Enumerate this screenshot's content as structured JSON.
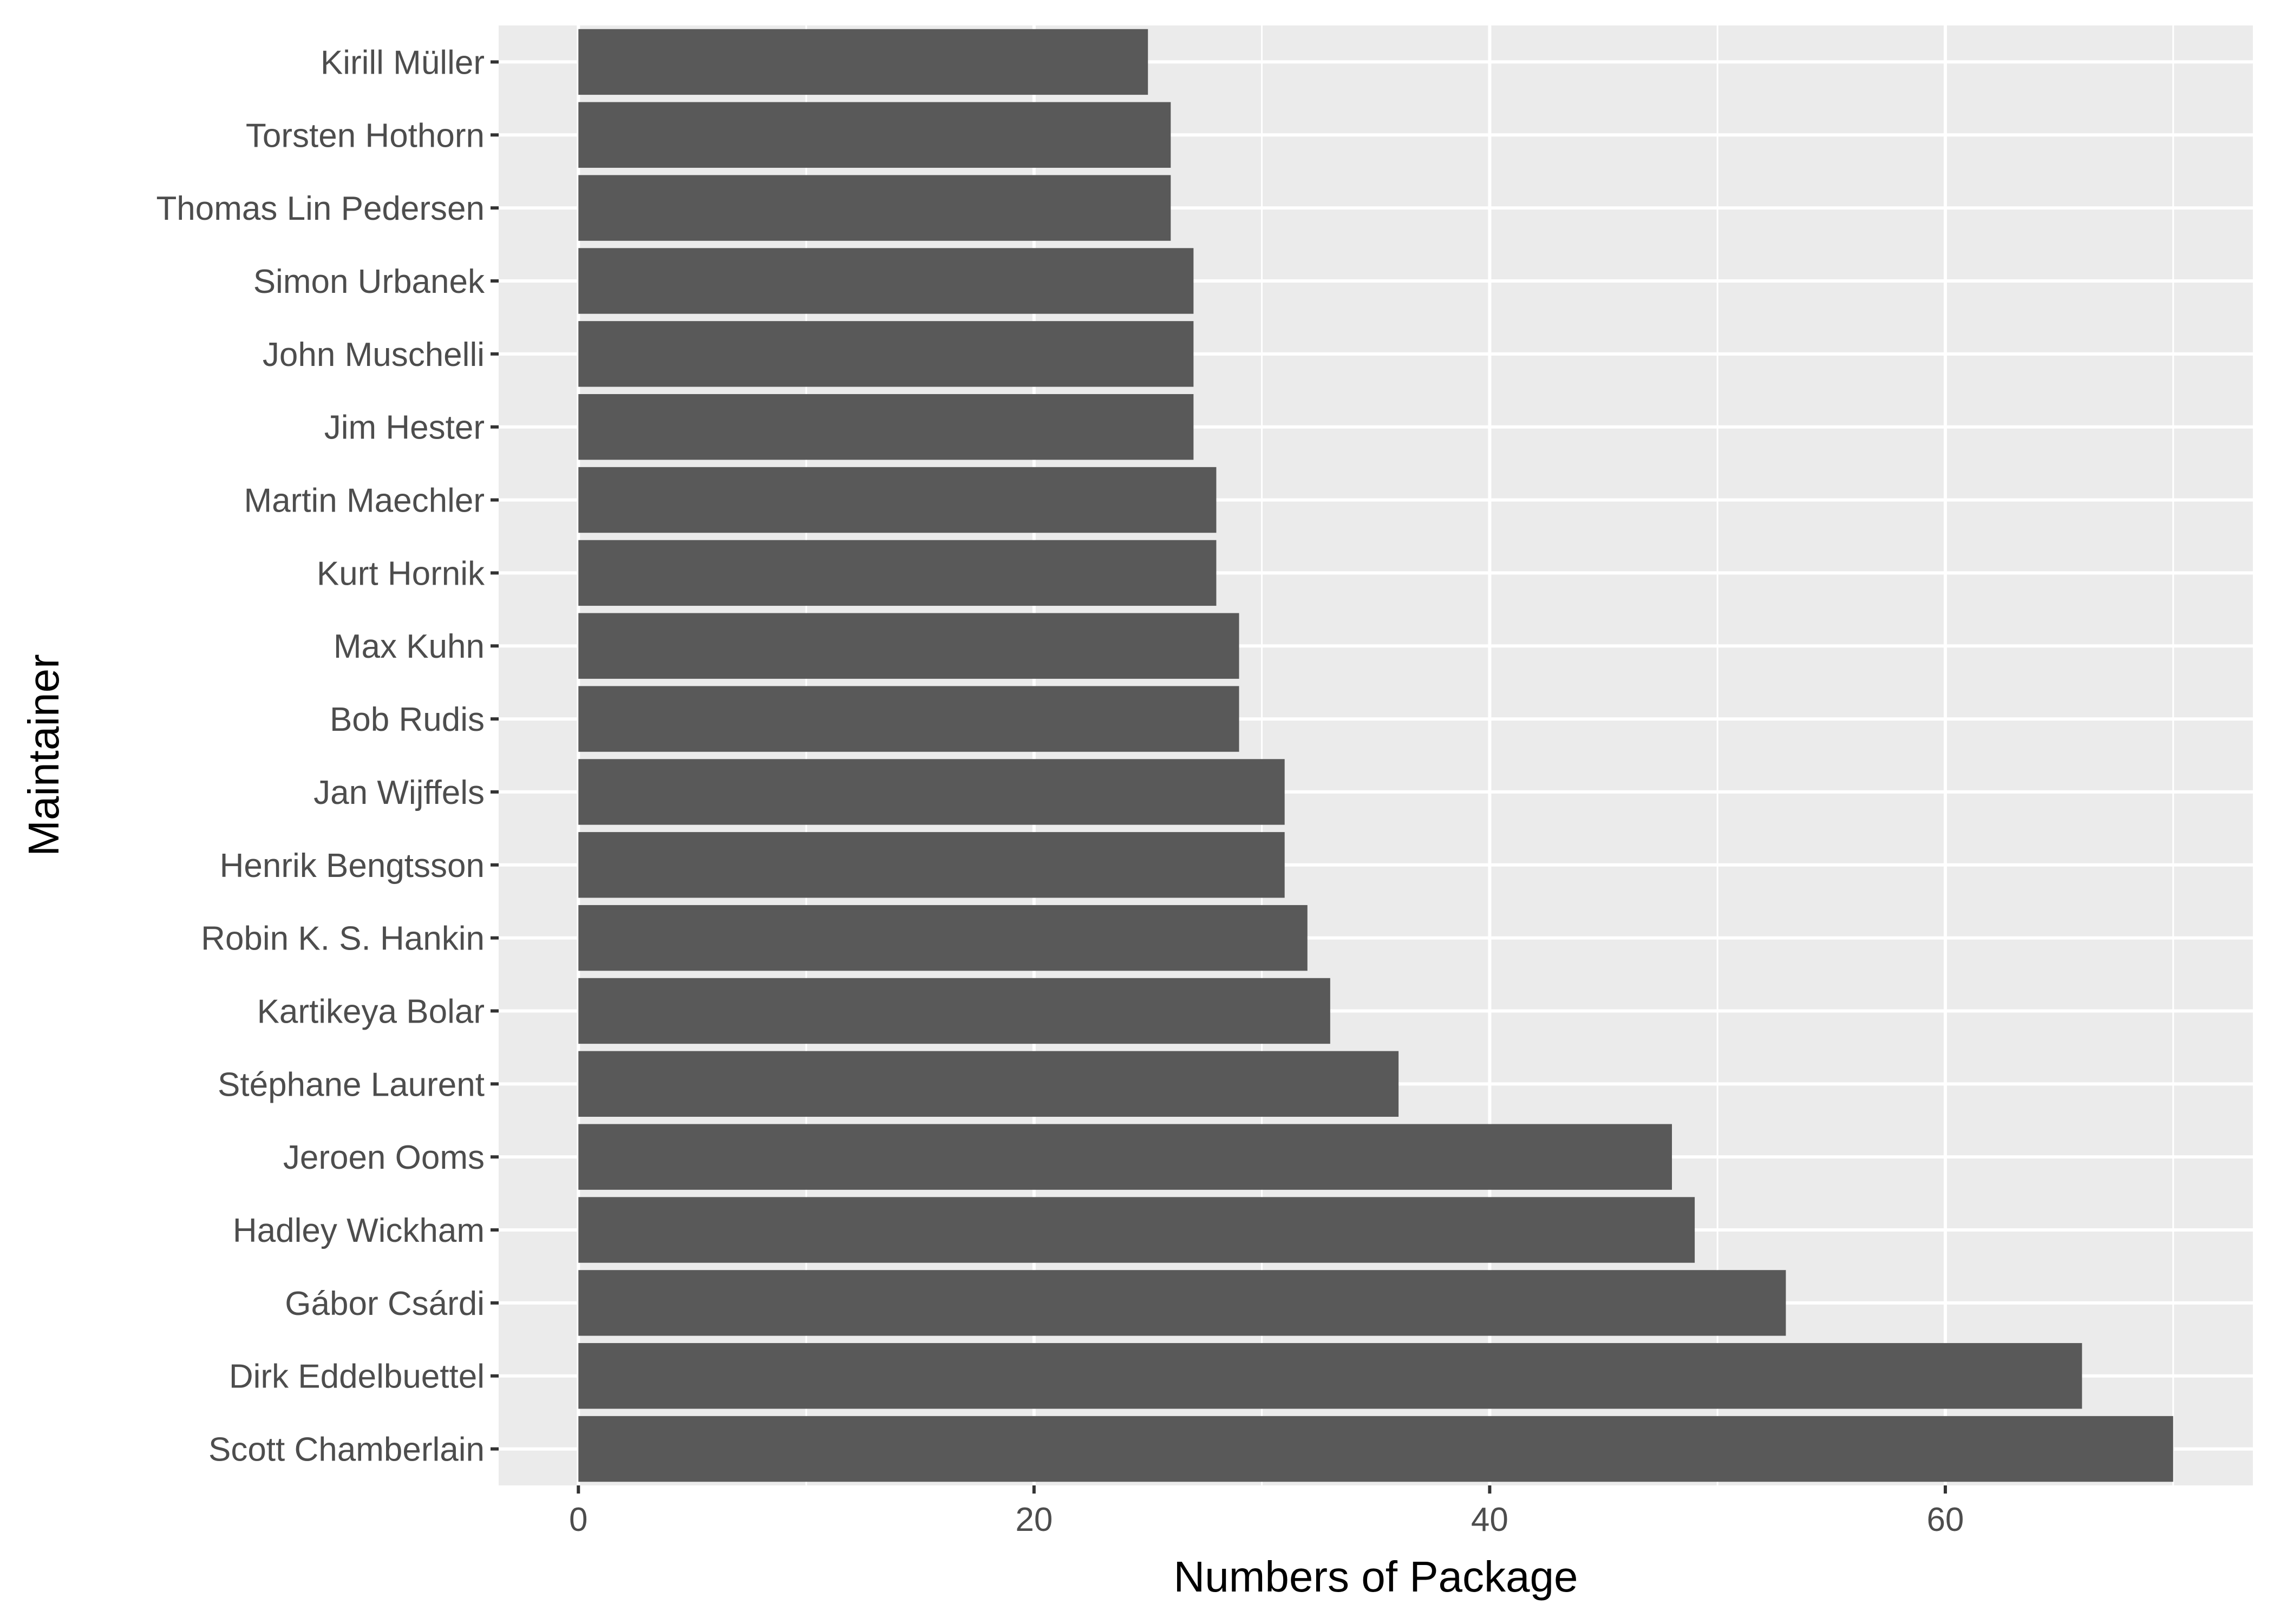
{
  "chart_data": {
    "type": "bar",
    "orientation": "horizontal",
    "title": "",
    "xlabel": "Numbers of Package",
    "ylabel": "Maintainer",
    "xlim": [
      -3.5,
      73.5
    ],
    "xticks": [
      0,
      20,
      40,
      60
    ],
    "grid": true,
    "categories": [
      "Kirill Müller",
      "Torsten Hothorn",
      "Thomas Lin Pedersen",
      "Simon Urbanek",
      "John Muschelli",
      "Jim Hester",
      "Martin Maechler",
      "Kurt Hornik",
      "Max Kuhn",
      "Bob Rudis",
      "Jan Wijffels",
      "Henrik Bengtsson",
      "Robin K. S. Hankin",
      "Kartikeya Bolar",
      "Stéphane Laurent",
      "Jeroen Ooms",
      "Hadley Wickham",
      "Gábor Csárdi",
      "Dirk Eddelbuettel",
      "Scott Chamberlain"
    ],
    "values": [
      25,
      26,
      26,
      27,
      27,
      27,
      28,
      28,
      29,
      29,
      31,
      31,
      32,
      33,
      36,
      48,
      49,
      53,
      66,
      70
    ],
    "colors": {
      "bar": "#595959",
      "panel_background": "#ebebeb",
      "grid": "#ffffff",
      "tick_label": "#4d4d4d",
      "axis_title": "#000000"
    }
  }
}
